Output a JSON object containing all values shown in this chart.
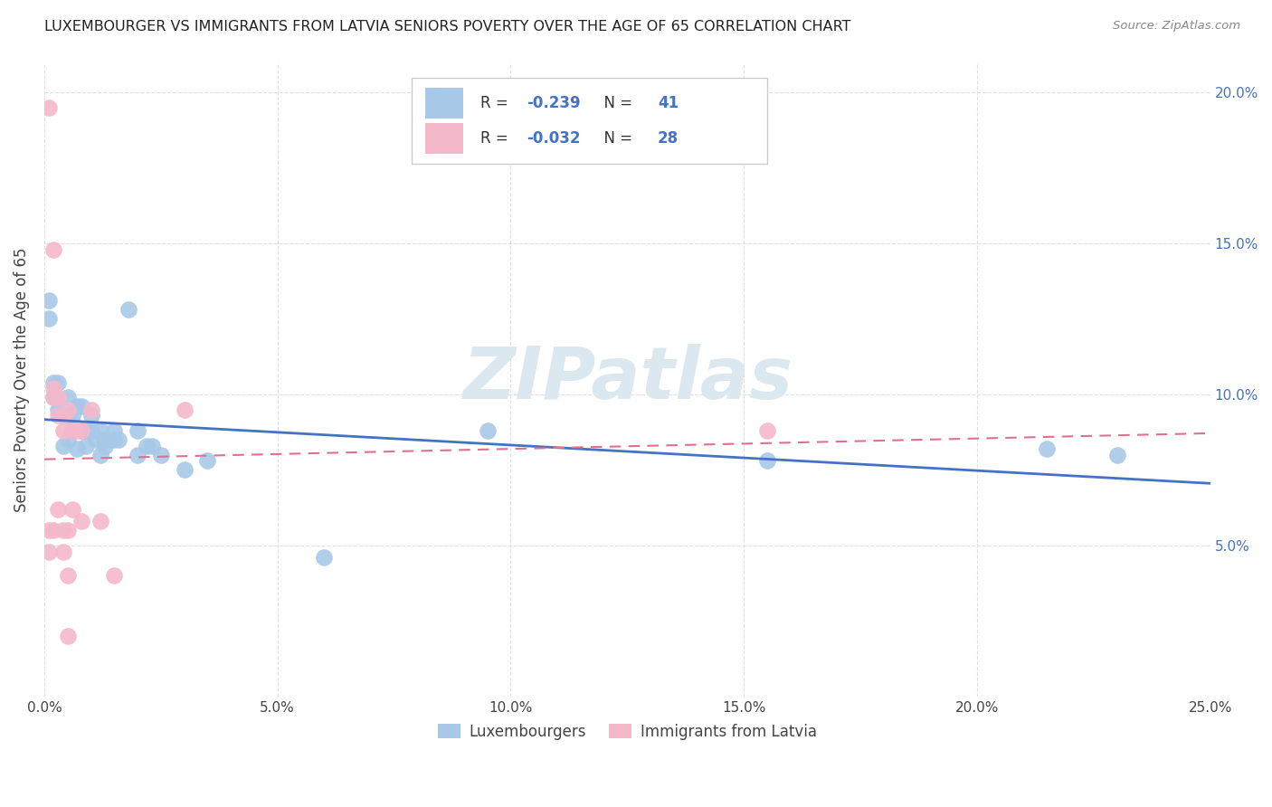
{
  "title": "LUXEMBOURGER VS IMMIGRANTS FROM LATVIA SENIORS POVERTY OVER THE AGE OF 65 CORRELATION CHART",
  "source": "Source: ZipAtlas.com",
  "ylabel": "Seniors Poverty Over the Age of 65",
  "xlim": [
    0.0,
    0.25
  ],
  "ylim": [
    0.0,
    0.21
  ],
  "xlabel_vals": [
    0.0,
    0.05,
    0.1,
    0.15,
    0.2,
    0.25
  ],
  "ylabel_vals": [
    0.05,
    0.1,
    0.15,
    0.2
  ],
  "legend_labels": [
    "Luxembourgers",
    "Immigrants from Latvia"
  ],
  "blue_R": "-0.239",
  "blue_N": "41",
  "pink_R": "-0.032",
  "pink_N": "28",
  "blue_scatter_color": "#a8c8e8",
  "pink_scatter_color": "#f4b8cb",
  "blue_line_color": "#4472c4",
  "pink_line_color": "#e07090",
  "legend_text_color": "#4472c4",
  "title_color": "#222222",
  "source_color": "#888888",
  "watermark_color": "#dce8f0",
  "watermark_text": "ZIPatlas",
  "grid_color": "#e0e0e0",
  "right_tick_color": "#4472c4",
  "blue_points": [
    [
      0.001,
      0.131
    ],
    [
      0.002,
      0.104
    ],
    [
      0.002,
      0.099
    ],
    [
      0.003,
      0.104
    ],
    [
      0.003,
      0.095
    ],
    [
      0.004,
      0.083
    ],
    [
      0.005,
      0.099
    ],
    [
      0.005,
      0.093
    ],
    [
      0.005,
      0.085
    ],
    [
      0.006,
      0.093
    ],
    [
      0.006,
      0.088
    ],
    [
      0.007,
      0.096
    ],
    [
      0.007,
      0.082
    ],
    [
      0.008,
      0.096
    ],
    [
      0.008,
      0.088
    ],
    [
      0.009,
      0.088
    ],
    [
      0.009,
      0.083
    ],
    [
      0.01,
      0.093
    ],
    [
      0.01,
      0.088
    ],
    [
      0.011,
      0.085
    ],
    [
      0.012,
      0.088
    ],
    [
      0.012,
      0.08
    ],
    [
      0.013,
      0.085
    ],
    [
      0.013,
      0.083
    ],
    [
      0.015,
      0.085
    ],
    [
      0.015,
      0.088
    ],
    [
      0.016,
      0.085
    ],
    [
      0.018,
      0.128
    ],
    [
      0.02,
      0.088
    ],
    [
      0.02,
      0.08
    ],
    [
      0.022,
      0.083
    ],
    [
      0.023,
      0.083
    ],
    [
      0.025,
      0.08
    ],
    [
      0.03,
      0.075
    ],
    [
      0.035,
      0.078
    ],
    [
      0.06,
      0.046
    ],
    [
      0.095,
      0.088
    ],
    [
      0.155,
      0.078
    ],
    [
      0.215,
      0.082
    ],
    [
      0.23,
      0.08
    ],
    [
      0.001,
      0.125
    ]
  ],
  "pink_points": [
    [
      0.001,
      0.195
    ],
    [
      0.001,
      0.055
    ],
    [
      0.001,
      0.048
    ],
    [
      0.002,
      0.148
    ],
    [
      0.002,
      0.102
    ],
    [
      0.002,
      0.099
    ],
    [
      0.002,
      0.055
    ],
    [
      0.003,
      0.099
    ],
    [
      0.003,
      0.093
    ],
    [
      0.003,
      0.062
    ],
    [
      0.004,
      0.093
    ],
    [
      0.004,
      0.088
    ],
    [
      0.004,
      0.055
    ],
    [
      0.004,
      0.048
    ],
    [
      0.005,
      0.095
    ],
    [
      0.005,
      0.055
    ],
    [
      0.005,
      0.04
    ],
    [
      0.005,
      0.02
    ],
    [
      0.006,
      0.088
    ],
    [
      0.006,
      0.062
    ],
    [
      0.007,
      0.088
    ],
    [
      0.008,
      0.088
    ],
    [
      0.008,
      0.058
    ],
    [
      0.01,
      0.095
    ],
    [
      0.012,
      0.058
    ],
    [
      0.015,
      0.04
    ],
    [
      0.03,
      0.095
    ],
    [
      0.155,
      0.088
    ]
  ]
}
